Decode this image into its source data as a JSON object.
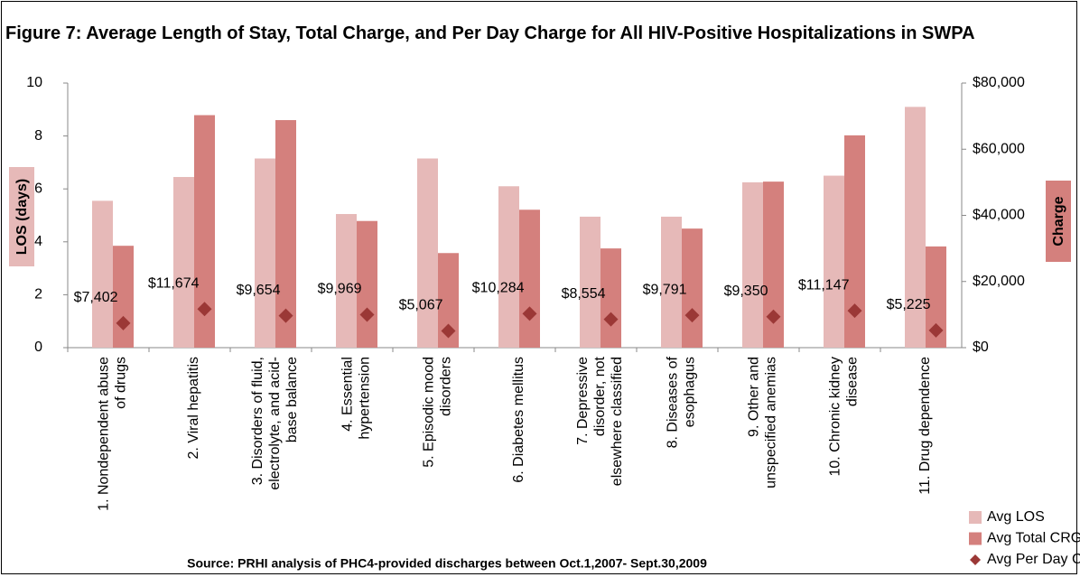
{
  "chart_data": {
    "type": "bar",
    "title": "Figure 7: Average Length of Stay, Total Charge, and Per Day Charge for All HIV-Positive Hospitalizations in SWPA",
    "source": "Source: PRHI analysis of PHC4-provided discharges between Oct.1,2007- Sept.30,2009",
    "ylabel": "LOS (days)",
    "y2label": "Charge",
    "categories": [
      "1. Nondependent abuse of drugs",
      "2. Viral hepatitis",
      "3. Disorders of fluid, electrolyte, and acid- base balance",
      "4. Essential hypertension",
      "5. Episodic mood disorders",
      "6. Diabetes mellitus",
      "7. Depressive disorder, not elsewhere classified",
      "8. Diseases of esophagus",
      "9. Other and unspecified anemias",
      "10. Chronic kidney disease",
      "11. Drug dependence"
    ],
    "series": [
      {
        "name": "Avg LOS",
        "color": "#e6b9b8",
        "values": [
          5.55,
          6.45,
          7.15,
          5.05,
          7.15,
          6.1,
          4.95,
          4.95,
          6.25,
          6.5,
          9.1
        ]
      },
      {
        "name": "Avg Total CRG",
        "color": "#d4807d",
        "axis": "y2",
        "values": [
          30800,
          70300,
          68800,
          38300,
          28600,
          41700,
          30000,
          36000,
          50200,
          64200,
          30600
        ]
      },
      {
        "name": "Avg Per Day CRG",
        "color": "#9b3836",
        "axis": "y2",
        "marker": "diamond",
        "values": [
          7402,
          11674,
          9654,
          9969,
          5067,
          10284,
          8554,
          9791,
          9350,
          11147,
          5225
        ],
        "value_labels": [
          "$7,402",
          "$11,674",
          "$9,654",
          "$9,969",
          "$5,067",
          "$10,284",
          "$8,554",
          "$9,791",
          "$9,350",
          "$11,147",
          "$5,225"
        ]
      }
    ],
    "ylim": [
      0,
      10
    ],
    "yticks": [
      0,
      2,
      4,
      6,
      8,
      10
    ],
    "y2lim": [
      0,
      80000
    ],
    "y2ticks": [
      {
        "value": 0,
        "label": "$0"
      },
      {
        "value": 20000,
        "label": "$20,000"
      },
      {
        "value": 40000,
        "label": "$40,000"
      },
      {
        "value": 60000,
        "label": "$60,000"
      },
      {
        "value": 80000,
        "label": "$80,000"
      }
    ],
    "grid": false,
    "legend": "bottom-right"
  }
}
